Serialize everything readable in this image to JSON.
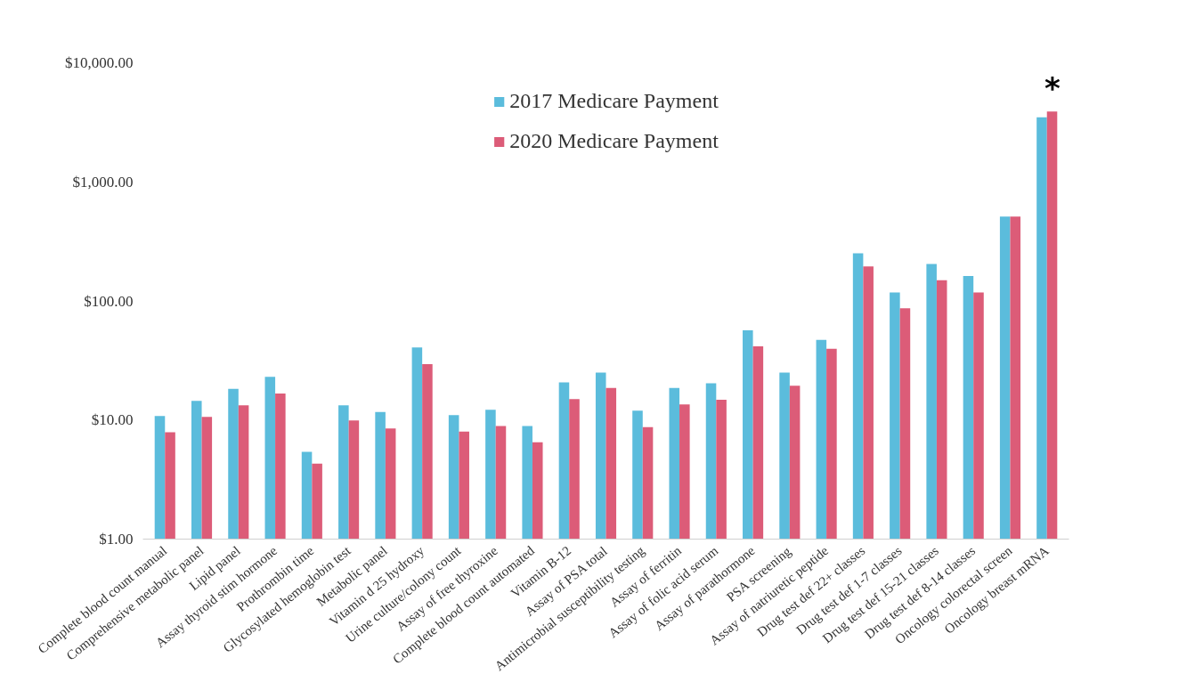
{
  "chart_data": {
    "type": "bar",
    "log": true,
    "grid": false,
    "legend": "top",
    "categories": [
      "Complete blood count manual",
      "Comprehensive metabolic panel",
      "Lipid panel",
      "Assay thyroid stim hormone",
      "Prothrombin time",
      "Glycosylated hemoglobin test",
      "Metabolic panel",
      "Vitamin d 25 hydroxy",
      "Urine culture/colony count",
      "Assay of free thyroxine",
      "Complete blood count automated",
      "Vitamin B-12",
      "Assay of PSA total",
      "Antimicrobial susceptibility testing",
      "Assay of ferritin",
      "Assay of folic acid serum",
      "Assay of parathormone",
      "PSA screening",
      "Assay of natriuretic peptide",
      "Drug test def 22+ classes",
      "Drug test def 1-7 classes",
      "Drug test def 15-21 classes",
      "Drug test def 8-14 classes",
      "Oncology colorectal screen",
      "Oncology breast mRNA"
    ],
    "series": [
      {
        "name": "2017 Medicare Payment",
        "color": "#5bbcdc",
        "values": [
          10.8,
          14.5,
          18.3,
          23,
          5.4,
          13.3,
          11.7,
          40.6,
          11,
          12.2,
          8.9,
          20.7,
          25,
          12,
          18.6,
          20.3,
          56.6,
          25,
          47,
          251,
          118,
          204,
          162,
          512,
          3490
        ]
      },
      {
        "name": "2020 Medicare Payment",
        "color": "#dc5c78",
        "values": [
          7.9,
          10.6,
          13.3,
          16.7,
          4.3,
          9.9,
          8.5,
          29.5,
          8,
          8.9,
          6.5,
          15,
          18.6,
          8.7,
          13.5,
          14.8,
          41.5,
          19.4,
          39.6,
          195,
          86.6,
          149,
          118,
          512,
          3890
        ]
      }
    ],
    "ylim": [
      1,
      10000
    ],
    "yticks": [
      {
        "value": 1,
        "label": "$1.00"
      },
      {
        "value": 10,
        "label": "$10.00"
      },
      {
        "value": 100,
        "label": "$100.00"
      },
      {
        "value": 1000,
        "label": "$1,000.00"
      },
      {
        "value": 10000,
        "label": "$10,000.00"
      }
    ],
    "annotations": [
      {
        "text": "*",
        "x": "Oncology breast mRNA",
        "y": 3890
      }
    ]
  }
}
